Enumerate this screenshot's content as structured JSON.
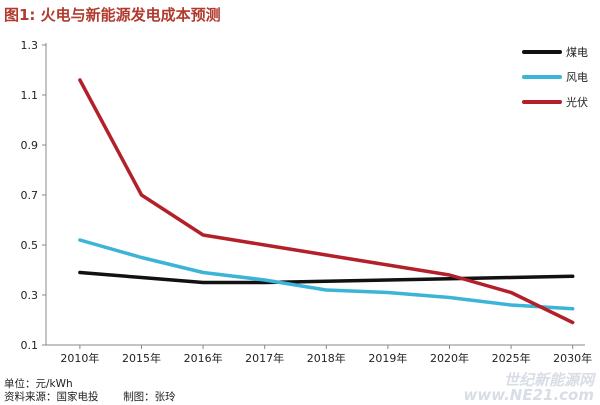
{
  "chart_data": {
    "type": "line",
    "title": "图1: 火电与新能源发电成本预测",
    "categories": [
      "2010年",
      "2015年",
      "2016年",
      "2017年",
      "2018年",
      "2019年",
      "2020年",
      "2025年",
      "2030年"
    ],
    "ylim": [
      0.1,
      1.3
    ],
    "yticks": [
      0.1,
      0.3,
      0.5,
      0.7,
      0.9,
      1.1,
      1.3
    ],
    "grid": false,
    "legend": "top-right",
    "series": [
      {
        "name": "煤电",
        "color": "#111111",
        "values": [
          0.39,
          0.37,
          0.35,
          0.35,
          0.355,
          0.36,
          0.365,
          0.37,
          0.375
        ]
      },
      {
        "name": "风电",
        "color": "#3cb4d8",
        "values": [
          0.52,
          0.45,
          0.39,
          0.36,
          0.32,
          0.31,
          0.29,
          0.26,
          0.245
        ]
      },
      {
        "name": "光伏",
        "color": "#b4202a",
        "values": [
          1.16,
          0.7,
          0.54,
          0.5,
          0.46,
          0.42,
          0.38,
          0.31,
          0.19
        ]
      }
    ]
  },
  "footer": {
    "unit": "单位：元/kWh",
    "source": "资料来源：国家电投",
    "author": "制图：张玲"
  },
  "watermark": {
    "name": "世纪新能源网",
    "url": "www.NE21.com"
  }
}
